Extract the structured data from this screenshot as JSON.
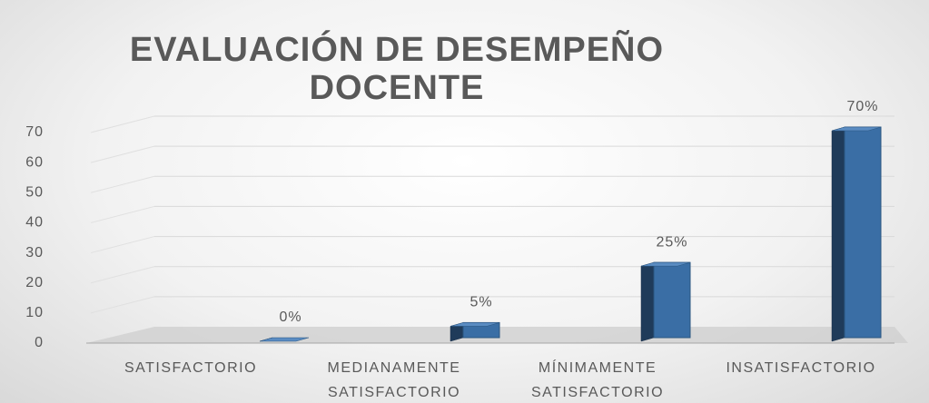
{
  "chart_data": {
    "type": "bar3d",
    "title": "EVALUACIÓN DE DESEMPEÑO DOCENTE",
    "categories": [
      "SATISFACTORIO",
      "MEDIANAMENTE SATISFACTORIO",
      "MÍNIMAMENTE SATISFACTORIO",
      "INSATISFACTORIO"
    ],
    "values": [
      0,
      5,
      25,
      70
    ],
    "value_labels": [
      "0%",
      "5%",
      "25%",
      "70%"
    ],
    "color": "#3a6ea5",
    "ylim": [
      0,
      70
    ],
    "yticks": [
      0,
      10,
      20,
      30,
      40,
      50,
      60,
      70
    ],
    "grid": true
  }
}
